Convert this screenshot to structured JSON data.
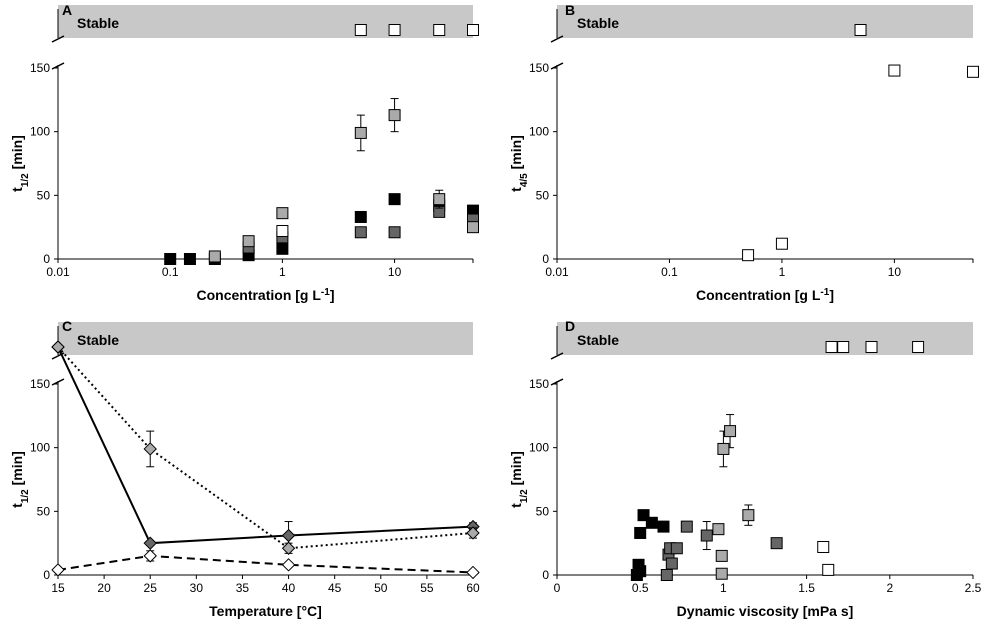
{
  "colors": {
    "black": "#000000",
    "dark_gray": "#666666",
    "light_gray": "#aaaaaa",
    "white": "#ffffff",
    "stable_band": "#c8c8c8"
  },
  "chart_data": [
    {
      "panel": "A",
      "type": "scatter",
      "x_scale": "log",
      "xlabel_main": "Concentration [g L",
      "xlabel_sup": "-1",
      "xlabel_end": "]",
      "ylabel_main": "t",
      "ylabel_sub": "1/2",
      "ylabel_end": " [min]",
      "xlim": [
        0.01,
        50
      ],
      "ylim": [
        0,
        150
      ],
      "xticks": [
        0.01,
        0.1,
        1,
        10
      ],
      "xtick_labels": [
        "0.01",
        "0.1",
        "1",
        "10"
      ],
      "yticks": [
        0,
        50,
        100,
        150
      ],
      "ytick_labels": [
        "0",
        "50",
        "100",
        "150"
      ],
      "stable_label": "Stable",
      "grid": false,
      "series": [
        {
          "color": "black",
          "marker": "square",
          "points": [
            [
              0.1,
              0
            ],
            [
              0.15,
              0
            ],
            [
              0.25,
              0
            ],
            [
              0.5,
              3
            ],
            [
              1,
              8
            ],
            [
              5,
              33
            ],
            [
              10,
              47
            ],
            [
              25,
              42
            ],
            [
              50,
              38
            ]
          ]
        },
        {
          "color": "dark_gray",
          "marker": "square",
          "points": [
            [
              0.5,
              9
            ],
            [
              1,
              17
            ],
            [
              5,
              21
            ],
            [
              10,
              21
            ],
            [
              25,
              37
            ],
            [
              50,
              31
            ]
          ]
        },
        {
          "color": "light_gray",
          "marker": "square",
          "points": [
            [
              0.25,
              2
            ],
            [
              0.5,
              14
            ],
            [
              1,
              36
            ],
            [
              5,
              99
            ],
            [
              10,
              113
            ],
            [
              25,
              47
            ],
            [
              50,
              25
            ]
          ],
          "errors": [
            [
              5,
              14
            ],
            [
              10,
              13
            ],
            [
              25,
              7
            ]
          ]
        },
        {
          "color": "white",
          "marker": "square",
          "points": [
            [
              1,
              22
            ],
            [
              5,
              "Stable"
            ],
            [
              10,
              "Stable"
            ],
            [
              25,
              "Stable"
            ],
            [
              50,
              "Stable"
            ]
          ]
        }
      ]
    },
    {
      "panel": "B",
      "type": "scatter",
      "x_scale": "log",
      "xlabel_main": "Concentration [g L",
      "xlabel_sup": "-1",
      "xlabel_end": "]",
      "ylabel_main": "t",
      "ylabel_sub": "4/5",
      "ylabel_end": " [min]",
      "xlim": [
        0.01,
        50
      ],
      "ylim": [
        0,
        150
      ],
      "xticks": [
        0.01,
        0.1,
        1,
        10
      ],
      "xtick_labels": [
        "0.01",
        "0.1",
        "1",
        "10"
      ],
      "yticks": [
        0,
        50,
        100,
        150
      ],
      "ytick_labels": [
        "0",
        "50",
        "100",
        "150"
      ],
      "stable_label": "Stable",
      "grid": false,
      "series": [
        {
          "color": "white",
          "marker": "square",
          "points": [
            [
              0.5,
              3
            ],
            [
              1,
              12
            ],
            [
              5,
              "Stable"
            ],
            [
              10,
              148
            ],
            [
              50,
              147
            ]
          ]
        }
      ]
    },
    {
      "panel": "C",
      "type": "line",
      "x_scale": "linear",
      "xlabel_main": "Temperature [°C]",
      "xlabel_sup": "",
      "xlabel_end": "",
      "ylabel_main": "t",
      "ylabel_sub": "1/2",
      "ylabel_end": " [min]",
      "xlim": [
        15,
        60
      ],
      "ylim": [
        0,
        150
      ],
      "xticks": [
        15,
        20,
        25,
        30,
        35,
        40,
        45,
        50,
        55,
        60
      ],
      "xtick_labels": [
        "15",
        "20",
        "25",
        "30",
        "35",
        "40",
        "45",
        "50",
        "55",
        "60"
      ],
      "yticks": [
        0,
        50,
        100,
        150
      ],
      "ytick_labels": [
        "0",
        "50",
        "100",
        "150"
      ],
      "stable_label": "Stable",
      "grid": false,
      "series": [
        {
          "color": "dark_gray",
          "marker": "diamond",
          "line": "solid",
          "points": [
            [
              15,
              "Stable"
            ],
            [
              25,
              25
            ],
            [
              40,
              31
            ],
            [
              60,
              38
            ]
          ],
          "errors": [
            [
              40,
              11
            ],
            [
              60,
              3
            ]
          ]
        },
        {
          "color": "light_gray",
          "marker": "diamond",
          "line": "dotted",
          "points": [
            [
              15,
              "Stable"
            ],
            [
              25,
              99
            ],
            [
              40,
              21
            ],
            [
              60,
              33
            ]
          ],
          "errors": [
            [
              25,
              14
            ],
            [
              40,
              4
            ],
            [
              60,
              4
            ]
          ]
        },
        {
          "color": "white",
          "marker": "diamond",
          "line": "dashed",
          "points": [
            [
              15,
              4
            ],
            [
              25,
              15
            ],
            [
              40,
              8
            ],
            [
              60,
              2
            ]
          ],
          "errors": [
            [
              25,
              4
            ]
          ]
        }
      ]
    },
    {
      "panel": "D",
      "type": "scatter",
      "x_scale": "linear",
      "xlabel_main": "Dynamic viscosity [mPa s]",
      "xlabel_sup": "",
      "xlabel_end": "",
      "ylabel_main": "t",
      "ylabel_sub": "1/2",
      "ylabel_end": " [min]",
      "xlim": [
        0,
        2.5
      ],
      "ylim": [
        0,
        150
      ],
      "xticks": [
        0,
        0.5,
        1,
        1.5,
        2,
        2.5
      ],
      "xtick_labels": [
        "0",
        "0.5",
        "1",
        "1.5",
        "2",
        "2.5"
      ],
      "yticks": [
        0,
        50,
        100,
        150
      ],
      "ytick_labels": [
        "0",
        "50",
        "100",
        "150"
      ],
      "stable_label": "Stable",
      "grid": false,
      "series": [
        {
          "color": "black",
          "marker": "square",
          "points": [
            [
              0.48,
              0
            ],
            [
              0.49,
              8
            ],
            [
              0.5,
              3
            ],
            [
              0.5,
              33
            ],
            [
              0.52,
              47
            ],
            [
              0.57,
              41
            ],
            [
              0.64,
              38
            ]
          ]
        },
        {
          "color": "dark_gray",
          "marker": "square",
          "points": [
            [
              0.66,
              0
            ],
            [
              0.67,
              16
            ],
            [
              0.68,
              21
            ],
            [
              0.69,
              9
            ],
            [
              0.72,
              21
            ],
            [
              0.78,
              38
            ],
            [
              0.9,
              31
            ],
            [
              1.32,
              25
            ]
          ],
          "errors": [
            [
              0.9,
              11
            ]
          ]
        },
        {
          "color": "light_gray",
          "marker": "square",
          "points": [
            [
              0.97,
              36
            ],
            [
              0.99,
              1
            ],
            [
              0.99,
              15
            ],
            [
              1.0,
              99
            ],
            [
              1.04,
              113
            ],
            [
              1.15,
              47
            ]
          ],
          "errors": [
            [
              1.0,
              14
            ],
            [
              1.04,
              13
            ],
            [
              1.15,
              8
            ]
          ]
        },
        {
          "color": "white",
          "marker": "square",
          "points": [
            [
              1.6,
              22
            ],
            [
              1.63,
              4
            ],
            [
              1.65,
              "Stable"
            ],
            [
              1.72,
              "Stable"
            ],
            [
              1.89,
              "Stable"
            ],
            [
              2.17,
              "Stable"
            ]
          ]
        }
      ]
    }
  ]
}
